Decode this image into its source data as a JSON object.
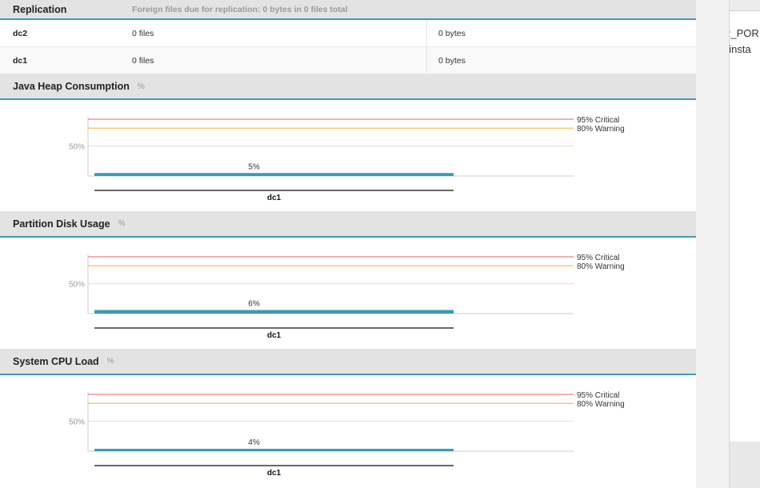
{
  "replication": {
    "title": "Replication",
    "subtext": "Foreign files due for replication: 0 bytes in 0 files total",
    "rows": [
      {
        "dc": "dc2",
        "files": "0 files",
        "bytes": "0 bytes"
      },
      {
        "dc": "dc1",
        "files": "0 files",
        "bytes": "0 bytes"
      }
    ]
  },
  "charts": [
    {
      "title": "Java Heap Consumption",
      "unit": "%",
      "chart_data": {
        "type": "bar",
        "categories": [
          "dc1"
        ],
        "values": [
          5
        ],
        "value_labels": [
          "5%"
        ],
        "ytick_label": "50%",
        "ylim": [
          0,
          100
        ],
        "thresholds": [
          {
            "label": "95% Critical",
            "value": 95,
            "color": "#f08080"
          },
          {
            "label": "80% Warning",
            "value": 80,
            "color": "#f5b942"
          }
        ],
        "bar_color": "#3a9bb5"
      }
    },
    {
      "title": "Partition Disk Usage",
      "unit": "%",
      "chart_data": {
        "type": "bar",
        "categories": [
          "dc1"
        ],
        "values": [
          6
        ],
        "value_labels": [
          "6%"
        ],
        "ytick_label": "50%",
        "ylim": [
          0,
          100
        ],
        "thresholds": [
          {
            "label": "95% Critical",
            "value": 95,
            "color": "#f08080"
          },
          {
            "label": "80% Warning",
            "value": 80,
            "color": "#f5b942"
          }
        ],
        "bar_color": "#3a9bb5"
      }
    },
    {
      "title": "System CPU Load",
      "unit": "%",
      "chart_data": {
        "type": "bar",
        "categories": [
          "dc1"
        ],
        "values": [
          4
        ],
        "value_labels": [
          "4%"
        ],
        "ytick_label": "50%",
        "ylim": [
          0,
          100
        ],
        "thresholds": [
          {
            "label": "95% Critical",
            "value": 95,
            "color": "#f08080"
          },
          {
            "label": "80% Warning",
            "value": 80,
            "color": "#f5b942"
          }
        ],
        "bar_color": "#3a9bb5"
      }
    }
  ],
  "side_panel": {
    "line1": "R_POR",
    "line2": "_insta"
  }
}
